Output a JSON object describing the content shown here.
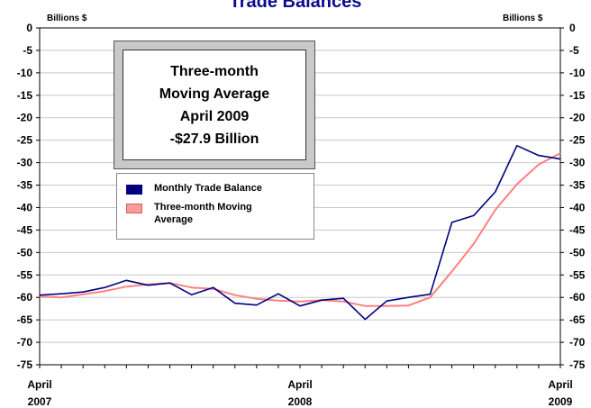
{
  "chart_data": {
    "type": "line",
    "title": "Trade Balances",
    "y_unit_left": "Billions $",
    "y_unit_right": "Billions $",
    "ylim": [
      -75,
      0
    ],
    "y_ticks": [
      "0",
      "-5",
      "-10",
      "-15",
      "-20",
      "-25",
      "-30",
      "-35",
      "-40",
      "-45",
      "-50",
      "-55",
      "-60",
      "-65",
      "-70",
      "-75"
    ],
    "x_labels": [
      {
        "month": "April",
        "year": "2007",
        "index": 0
      },
      {
        "month": "April",
        "year": "2008",
        "index": 12
      },
      {
        "month": "April",
        "year": "2009",
        "index": 24
      }
    ],
    "grid": true,
    "legend_position": "upper-left",
    "series": [
      {
        "name": "Monthly Trade Balance",
        "color": "#000080",
        "values": [
          -59.5,
          -59.2,
          -58.8,
          -57.8,
          -56.2,
          -57.3,
          -56.8,
          -59.4,
          -57.8,
          -61.3,
          -61.7,
          -59.2,
          -61.9,
          -60.6,
          -60.2,
          -64.9,
          -60.8,
          -60.0,
          -59.3,
          -43.3,
          -41.8,
          -36.5,
          -26.2,
          -28.4,
          -29.2
        ]
      },
      {
        "name": "Three-month Moving Average",
        "color": "#ff8080",
        "values": [
          -59.8,
          -60.0,
          -59.3,
          -58.6,
          -57.6,
          -57.1,
          -56.8,
          -57.8,
          -58.1,
          -59.5,
          -60.3,
          -60.7,
          -60.9,
          -60.6,
          -60.9,
          -61.9,
          -61.9,
          -61.8,
          -60.0,
          -54.2,
          -48.1,
          -40.5,
          -34.8,
          -30.4,
          -27.9
        ]
      }
    ],
    "callout": [
      "Three-month",
      "Moving Average",
      "April 2009",
      "-$27.9 Billion"
    ]
  }
}
